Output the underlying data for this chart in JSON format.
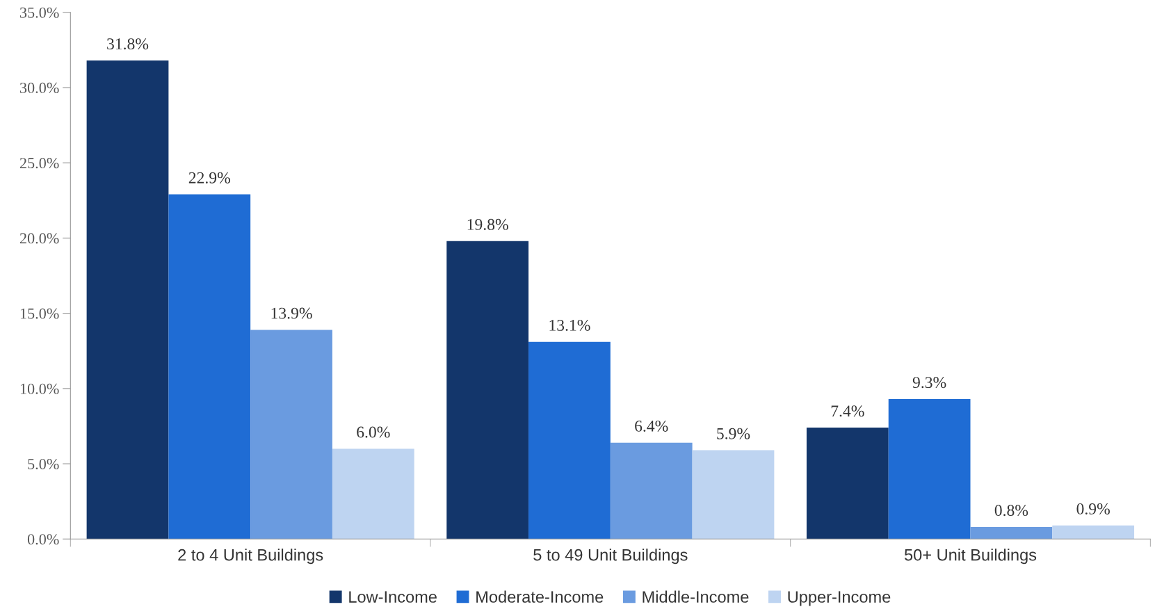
{
  "chart_data": {
    "type": "bar",
    "categories": [
      "2 to 4 Unit Buildings",
      "5 to 49 Unit Buildings",
      "50+ Unit Buildings"
    ],
    "series": [
      {
        "name": "Low-Income",
        "color": "#13366b",
        "values": [
          31.8,
          19.8,
          7.4
        ],
        "value_labels": [
          "31.8%",
          "19.8%",
          "7.4%"
        ]
      },
      {
        "name": "Moderate-Income",
        "color": "#1f6cd4",
        "values": [
          22.9,
          13.1,
          9.3
        ],
        "value_labels": [
          "22.9%",
          "13.1%",
          "9.3%"
        ]
      },
      {
        "name": "Middle-Income",
        "color": "#6a9be0",
        "values": [
          13.9,
          6.4,
          0.8
        ],
        "value_labels": [
          "13.9%",
          "6.4%",
          "0.8%"
        ]
      },
      {
        "name": "Upper-Income",
        "color": "#bed4f1",
        "values": [
          6.0,
          5.9,
          0.9
        ],
        "value_labels": [
          "6.0%",
          "5.9%",
          "0.9%"
        ]
      }
    ],
    "ylim": [
      0,
      35
    ],
    "yticks": [
      {
        "value": 0,
        "label": "0.0%"
      },
      {
        "value": 5,
        "label": "5.0%"
      },
      {
        "value": 10,
        "label": "10.0%"
      },
      {
        "value": 15,
        "label": "15.0%"
      },
      {
        "value": 20,
        "label": "20.0%"
      },
      {
        "value": 25,
        "label": "25.0%"
      },
      {
        "value": 30,
        "label": "30.0%"
      },
      {
        "value": 35,
        "label": "35.0%"
      }
    ],
    "grid": false,
    "legend": "bottom"
  }
}
